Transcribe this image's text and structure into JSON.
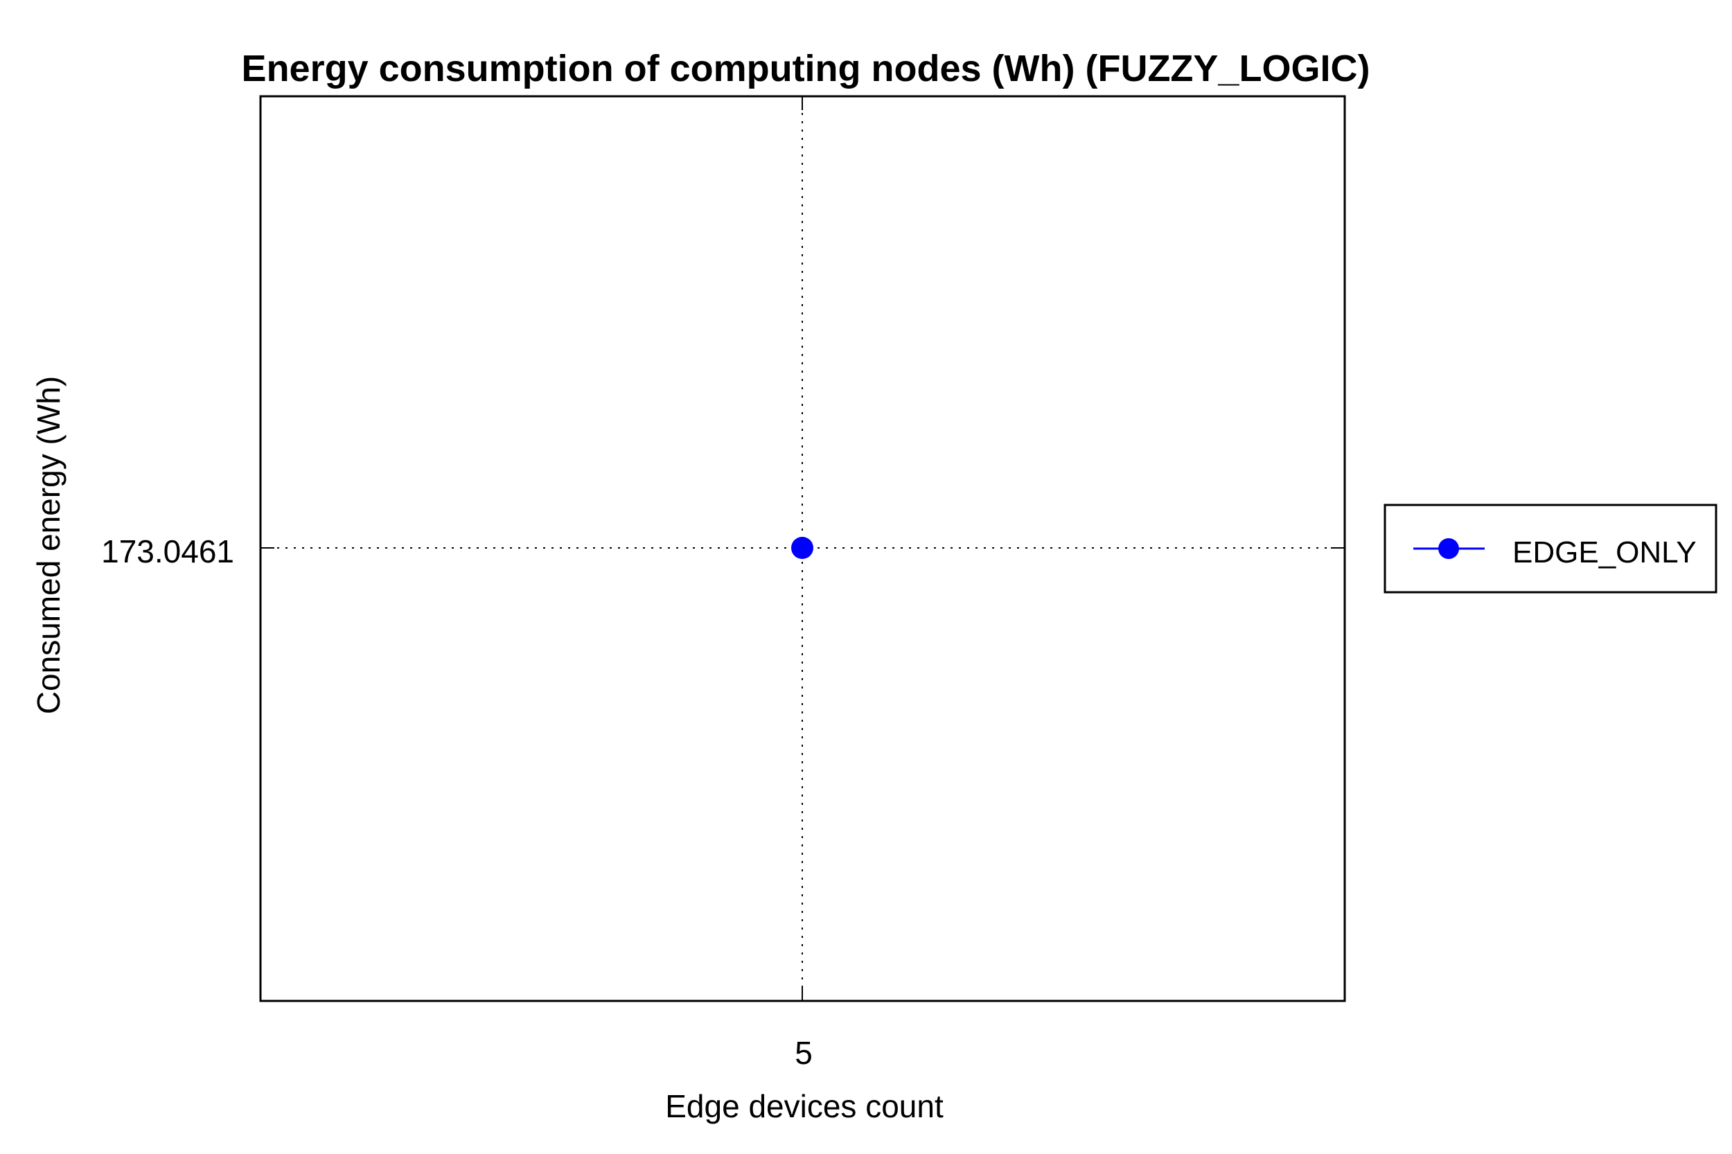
{
  "chart_data": {
    "type": "line",
    "title": "Energy consumption of computing nodes (Wh) (FUZZY_LOGIC)",
    "xlabel": "Edge devices count",
    "ylabel": "Consumed energy (Wh)",
    "x_ticks": [
      "5"
    ],
    "y_ticks": [
      "173.0461"
    ],
    "grid": true,
    "legend_position": "outside-right",
    "series": [
      {
        "name": "EDGE_ONLY",
        "color": "#0000ff",
        "marker": "circle",
        "points": [
          {
            "x": 5,
            "y": 173.0461
          }
        ]
      }
    ]
  }
}
